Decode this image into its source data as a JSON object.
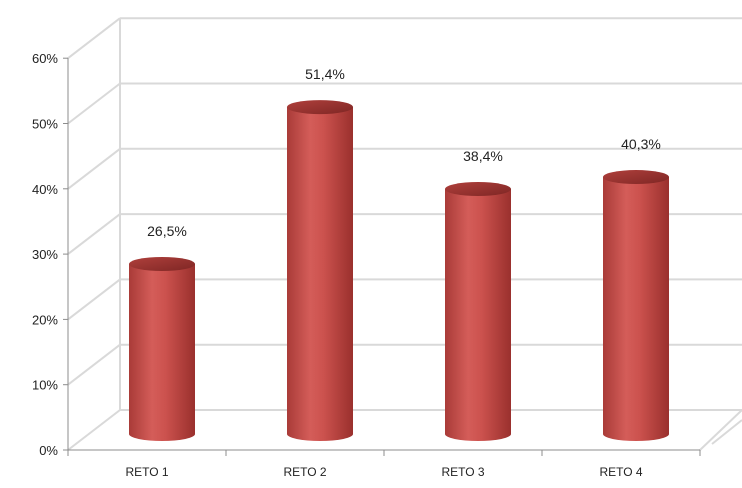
{
  "chart_data": {
    "type": "bar",
    "style": "3d-cylinder",
    "categories": [
      "RETO 1",
      "RETO 2",
      "RETO 3",
      "RETO 4"
    ],
    "values": [
      26.5,
      51.4,
      38.4,
      40.3
    ],
    "value_labels": [
      "26,5%",
      "51,4%",
      "38,4%",
      "40,3%"
    ],
    "y_ticks": [
      0,
      10,
      20,
      30,
      40,
      50,
      60
    ],
    "y_tick_labels": [
      "0%",
      "10%",
      "20%",
      "30%",
      "40%",
      "50%",
      "60%"
    ],
    "ylim": [
      0,
      60
    ],
    "grid": true,
    "legend": "none",
    "colors": {
      "bar": "#c0504d",
      "bar_dark": "#8b2a28",
      "bar_light": "#e07a77",
      "grid": "#d9d9d9",
      "axis": "#8c8c8c"
    }
  }
}
